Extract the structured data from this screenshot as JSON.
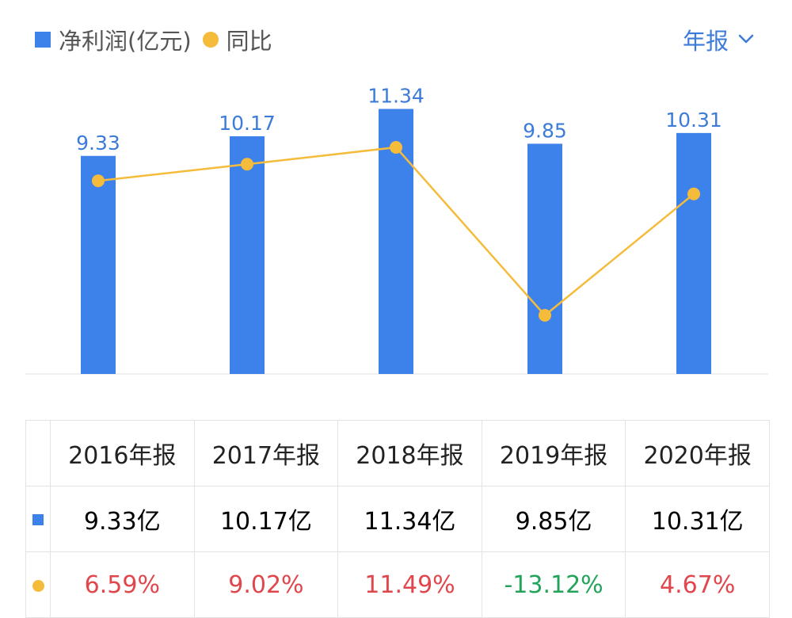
{
  "legend": {
    "profit_label": "净利润(亿元)",
    "yoy_label": "同比"
  },
  "period_selector": {
    "label": "年报"
  },
  "colors": {
    "bar": "#3d82ea",
    "line": "#f5bb3b",
    "label": "#3d7bd8",
    "positive": "#e0464c",
    "negative": "#24a35a",
    "axis": "#e2e2e2"
  },
  "chart_data": {
    "type": "bar",
    "title": "",
    "categories": [
      "2016年报",
      "2017年报",
      "2018年报",
      "2019年报",
      "2020年报"
    ],
    "series": [
      {
        "name": "净利润(亿元)",
        "type": "bar",
        "values": [
          9.33,
          10.17,
          11.34,
          9.85,
          10.31
        ],
        "labels": [
          "9.33",
          "10.17",
          "11.34",
          "9.85",
          "10.31"
        ]
      },
      {
        "name": "同比",
        "type": "line",
        "values": [
          6.59,
          9.02,
          11.49,
          -13.12,
          4.67
        ]
      }
    ],
    "xlabel": "",
    "ylabel": ""
  },
  "table": {
    "headers": [
      "2016年报",
      "2017年报",
      "2018年报",
      "2019年报",
      "2020年报"
    ],
    "profit_row": [
      "9.33亿",
      "10.17亿",
      "11.34亿",
      "9.85亿",
      "10.31亿"
    ],
    "yoy_row": [
      "6.59%",
      "9.02%",
      "11.49%",
      "-13.12%",
      "4.67%"
    ]
  }
}
